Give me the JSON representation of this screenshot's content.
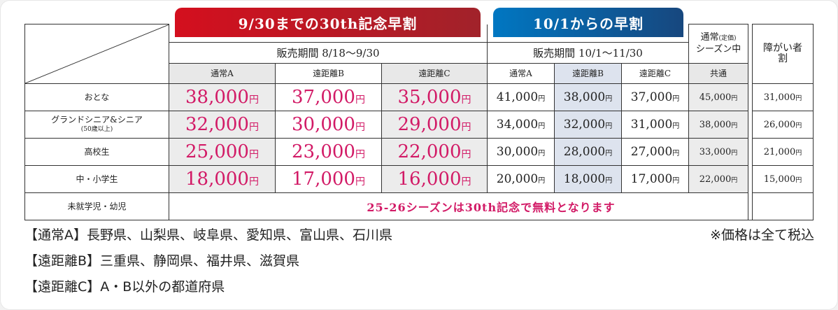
{
  "banners": {
    "early": "9/30までの30th記念早割",
    "late": "10/1からの早割"
  },
  "periods": {
    "early": "販売期間 8/18〜9/30",
    "late": "販売期間 10/1〜11/30"
  },
  "columns": {
    "normal_header_line1": "通常",
    "normal_header_tiny": "(定価)",
    "normal_header_line2": "シーズン中",
    "normal_common": "共通",
    "disabled": "障がい者割",
    "early": [
      "通常A",
      "遠距離B",
      "遠距離C"
    ],
    "late": [
      "通常A",
      "遠距離B",
      "遠距離C"
    ]
  },
  "yen": "円",
  "rows": [
    {
      "label": "おとな",
      "sublabel": "",
      "early": [
        "38,000",
        "37,000",
        "35,000"
      ],
      "late": [
        "41,000",
        "38,000",
        "37,000"
      ],
      "normal": "45,000",
      "disabled": "31,000"
    },
    {
      "label": "グランドシニア&シニア",
      "sublabel": "(50歳以上)",
      "early": [
        "32,000",
        "30,000",
        "29,000"
      ],
      "late": [
        "34,000",
        "32,000",
        "31,000"
      ],
      "normal": "38,000",
      "disabled": "26,000"
    },
    {
      "label": "高校生",
      "sublabel": "",
      "early": [
        "25,000",
        "23,000",
        "22,000"
      ],
      "late": [
        "30,000",
        "28,000",
        "27,000"
      ],
      "normal": "33,000",
      "disabled": "21,000"
    },
    {
      "label": "中・小学生",
      "sublabel": "",
      "early": [
        "18,000",
        "17,000",
        "16,000"
      ],
      "late": [
        "20,000",
        "18,000",
        "17,000"
      ],
      "normal": "22,000",
      "disabled": "15,000"
    }
  ],
  "preschool": {
    "label": "未就学児・幼児",
    "message": "25-26シーズンは30th記念で無料となります"
  },
  "notes": [
    "【通常A】長野県、山梨県、岐阜県、愛知県、富山県、石川県",
    "【遠距離B】三重県、静岡県、福井県、滋賀県",
    "【遠距離C】A・B以外の都道府県"
  ],
  "tax_note": "※価格は全て税込"
}
